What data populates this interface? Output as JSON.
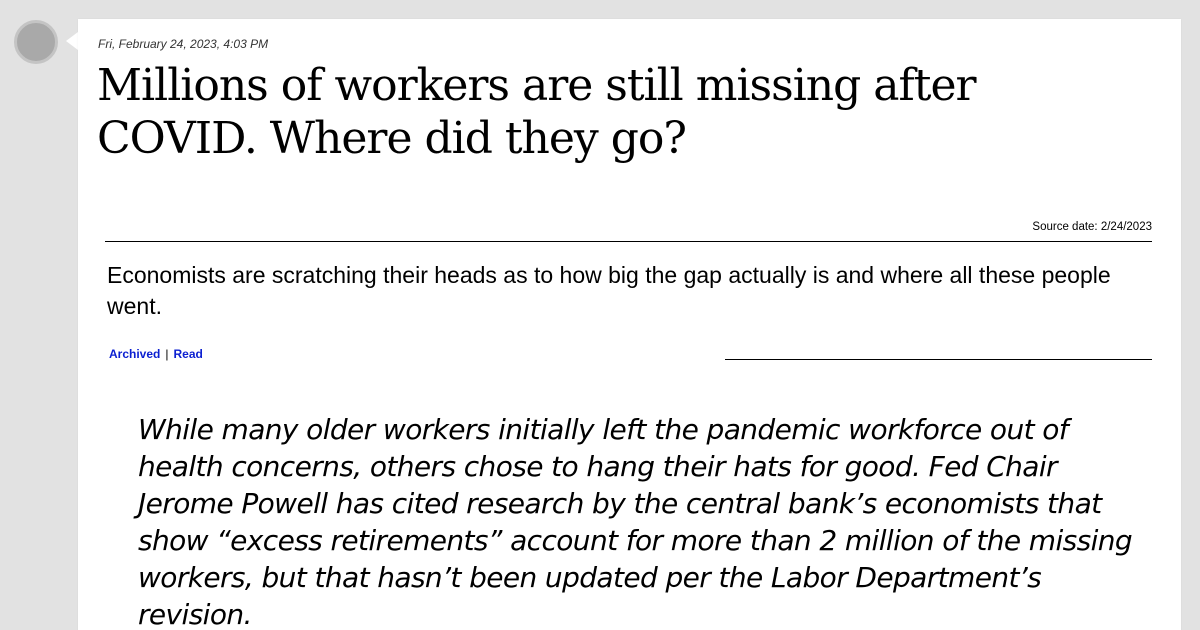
{
  "post": {
    "timestamp": "Fri, February 24, 2023, 4:03 PM",
    "headline": "Millions of workers are still missing after COVID. Where did they go?",
    "source_date": "Source date: 2/24/2023",
    "summary": "Economists are scratching their heads as to how big the gap actually is and where all these people went.",
    "links": {
      "archived": "Archived",
      "separator": "|",
      "read": "Read"
    },
    "quote": "While many older workers initially left the pandemic workforce out of health concerns, others chose to hang their hats for good. Fed Chair Jerome Powell has cited research by the central bank’s economists that show “excess retirements” account for more than 2 million of the missing workers, but that hasn’t been updated per the Labor Department’s revision."
  },
  "colors": {
    "background": "#e2e2e2",
    "card": "#ffffff",
    "link": "#0b1fd1",
    "avatar": "#a9a9a9"
  }
}
